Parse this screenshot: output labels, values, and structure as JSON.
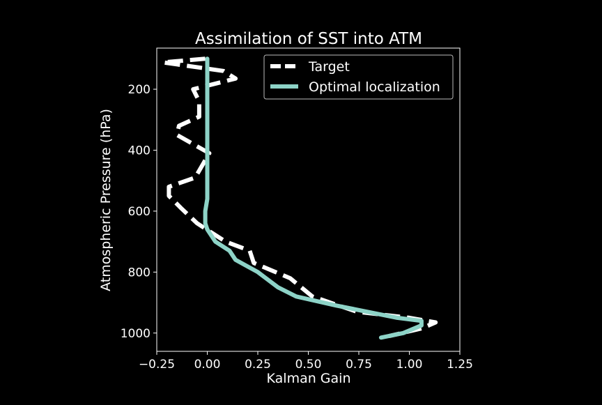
{
  "chart_data": {
    "type": "line",
    "title": "Assimilation of SST into ATM",
    "xlabel": "Kalman Gain",
    "ylabel": "Atmospheric Pressure (hPa)",
    "xlim": [
      -0.25,
      1.25
    ],
    "ylim": [
      1060,
      65
    ],
    "y_inverted": true,
    "xticks": [
      -0.25,
      0.0,
      0.25,
      0.5,
      0.75,
      1.0,
      1.25
    ],
    "xtick_labels": [
      "−0.25",
      "0.00",
      "0.25",
      "0.50",
      "0.75",
      "1.00",
      "1.25"
    ],
    "yticks": [
      200,
      400,
      600,
      800,
      1000
    ],
    "ytick_labels": [
      "200",
      "400",
      "600",
      "800",
      "1000"
    ],
    "grid": false,
    "legend_position": "top-right",
    "background": "#000000",
    "series": [
      {
        "name": "Target",
        "style": "dashed",
        "color": "#ffffff",
        "x": [
          -0.01,
          -0.22,
          0.08,
          0.14,
          -0.07,
          -0.04,
          -0.04,
          -0.14,
          -0.15,
          0.01,
          -0.06,
          -0.19,
          -0.19,
          -0.13,
          -0.05,
          0.09,
          0.21,
          0.23,
          0.41,
          0.52,
          0.74,
          1.0,
          1.13,
          1.06,
          0.9
        ],
        "y": [
          100,
          112,
          140,
          165,
          200,
          240,
          290,
          320,
          350,
          410,
          490,
          520,
          550,
          590,
          640,
          700,
          730,
          770,
          820,
          880,
          930,
          950,
          965,
          985,
          1010
        ]
      },
      {
        "name": "Optimal localization",
        "style": "solid",
        "color": "#8dd3c7",
        "x": [
          0.0,
          0.0,
          0.0,
          0.0,
          0.0,
          0.0,
          -0.01,
          -0.01,
          0.0,
          0.04,
          0.11,
          0.14,
          0.25,
          0.35,
          0.44,
          0.64,
          0.94,
          1.06,
          1.06,
          0.97,
          0.86
        ],
        "y": [
          100,
          200,
          300,
          400,
          500,
          560,
          600,
          640,
          660,
          700,
          730,
          760,
          800,
          850,
          880,
          910,
          950,
          960,
          975,
          1000,
          1015
        ]
      }
    ]
  }
}
